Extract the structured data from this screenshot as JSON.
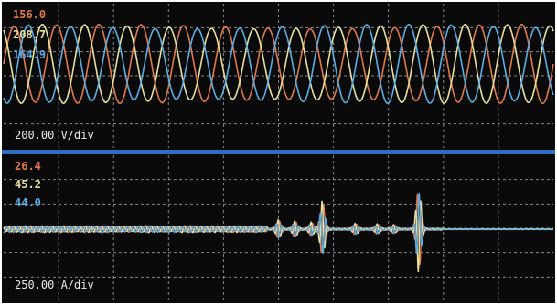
{
  "colors": {
    "background": "#0a0a0a",
    "grid": "#bdbdbd",
    "divider": "#2d6fc4",
    "frame": "#ffffff",
    "phase_a": "#e0784a",
    "phase_b": "#e8e0a0",
    "phase_c": "#5aaee6"
  },
  "chart_data": [
    {
      "type": "line",
      "pane": "voltage",
      "scale_label": "200.00 V/div",
      "readouts": [
        "156.0",
        "208.7",
        "164.9"
      ],
      "series": [
        {
          "color_key": "phase_a",
          "amplitude_div": 1.55,
          "phase_deg": 0
        },
        {
          "color_key": "phase_b",
          "amplitude_div": 1.55,
          "phase_deg": 120
        },
        {
          "color_key": "phase_c",
          "amplitude_div": 1.55,
          "phase_deg": 240
        }
      ],
      "cycles_visible": 13,
      "grid": true
    },
    {
      "type": "line",
      "pane": "current",
      "scale_label": "250.00 A/div",
      "readouts": [
        "26.4",
        "45.2",
        "44.0"
      ],
      "series": [
        {
          "color_key": "phase_a"
        },
        {
          "color_key": "phase_b"
        },
        {
          "color_key": "phase_c"
        }
      ],
      "bursts_div": [
        {
          "t": 0.5,
          "amplitude": 0.35
        },
        {
          "t": 0.53,
          "amplitude": 0.3
        },
        {
          "t": 0.56,
          "amplitude": 0.25
        },
        {
          "t": 0.58,
          "amplitude": 1.15
        },
        {
          "t": 0.64,
          "amplitude": 0.2
        },
        {
          "t": 0.68,
          "amplitude": 0.18
        },
        {
          "t": 0.71,
          "amplitude": 0.15
        },
        {
          "t": 0.755,
          "amplitude": 1.75
        }
      ],
      "grid": true
    }
  ]
}
